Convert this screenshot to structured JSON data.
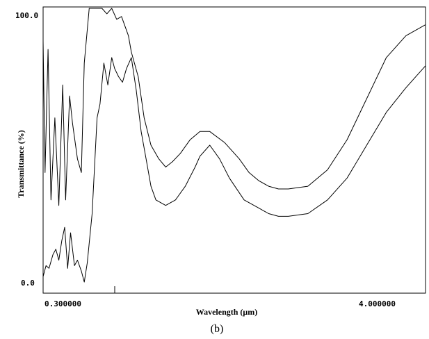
{
  "caption": "(b)",
  "chart_data": {
    "type": "line",
    "title": "",
    "xlabel": "Wavelength (μm)",
    "ylabel": "Transmittance (%)",
    "x_tick_labels": [
      "0.300000",
      "4.000000"
    ],
    "y_tick_labels": [
      "100.0",
      "0.0"
    ],
    "x_ticks": [
      0.3,
      4.0
    ],
    "xlim": [
      0.3,
      4.2
    ],
    "ylim": [
      0,
      100
    ],
    "grid": false,
    "series": [
      {
        "x": [
          0.3,
          0.32,
          0.35,
          0.38,
          0.42,
          0.46,
          0.5,
          0.53,
          0.57,
          0.6,
          0.65,
          0.69,
          0.72,
          0.77,
          0.85,
          0.9,
          0.95,
          1.0,
          1.05,
          1.1,
          1.17,
          1.2,
          1.27,
          1.33,
          1.4,
          1.48,
          1.55,
          1.62,
          1.7,
          1.8,
          1.9,
          2.0,
          2.15,
          2.3,
          2.4,
          2.5,
          2.6,
          2.7,
          2.8,
          3.0,
          3.2,
          3.4,
          3.6,
          3.8,
          4.0,
          4.2
        ],
        "values": [
          88,
          40,
          85,
          30,
          60,
          28,
          72,
          30,
          68,
          58,
          45,
          40,
          80,
          100,
          100,
          100,
          98,
          100,
          96,
          97,
          90,
          84,
          75,
          60,
          50,
          45,
          42,
          44,
          47,
          52,
          55,
          55,
          51,
          45,
          40,
          37,
          35,
          34,
          34,
          35,
          41,
          52,
          67,
          82,
          90,
          94
        ]
      },
      {
        "x": [
          0.3,
          0.33,
          0.36,
          0.4,
          0.43,
          0.46,
          0.49,
          0.52,
          0.55,
          0.58,
          0.62,
          0.65,
          0.69,
          0.72,
          0.75,
          0.8,
          0.85,
          0.88,
          0.92,
          0.96,
          1.0,
          1.03,
          1.07,
          1.11,
          1.15,
          1.2,
          1.25,
          1.3,
          1.35,
          1.4,
          1.45,
          1.55,
          1.65,
          1.75,
          1.85,
          1.9,
          2.0,
          2.1,
          2.2,
          2.35,
          2.5,
          2.6,
          2.7,
          2.8,
          3.0,
          3.2,
          3.4,
          3.6,
          3.8,
          4.0,
          4.2
        ],
        "values": [
          2,
          6,
          5,
          10,
          12,
          8,
          15,
          20,
          5,
          18,
          6,
          8,
          4,
          0,
          7,
          25,
          60,
          65,
          80,
          72,
          82,
          78,
          75,
          73,
          78,
          82,
          70,
          55,
          45,
          35,
          30,
          28,
          30,
          35,
          42,
          46,
          50,
          45,
          38,
          30,
          27,
          25,
          24,
          24,
          25,
          30,
          38,
          50,
          62,
          71,
          79
        ]
      }
    ]
  }
}
